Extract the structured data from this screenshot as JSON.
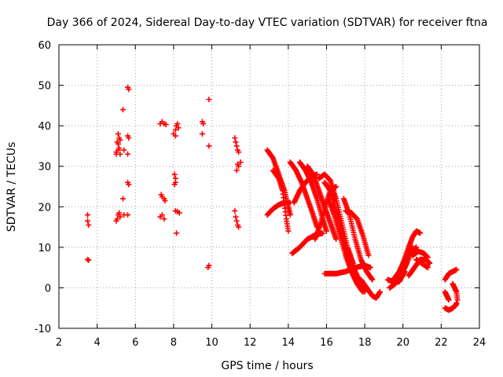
{
  "chart_data": {
    "type": "scatter",
    "title": "Day 366 of 2024, Sidereal Day-to-day VTEC variation (SDTVAR) for receiver ftna",
    "xlabel": "GPS time / hours",
    "ylabel": "SDTVAR / TECUs",
    "xlim": [
      2,
      24
    ],
    "ylim": [
      -10,
      60
    ],
    "xticks": [
      "2",
      "4",
      "6",
      "8",
      "10",
      "12",
      "14",
      "16",
      "18",
      "20",
      "22",
      "24"
    ],
    "yticks": [
      "-10",
      "0",
      "10",
      "20",
      "30",
      "40",
      "50",
      "60"
    ],
    "grid": true,
    "marker": "+",
    "marker_color": "#ff0000",
    "series": [
      {
        "name": "isolated",
        "points": [
          [
            3.5,
            18
          ],
          [
            3.5,
            16.5
          ],
          [
            3.55,
            15.5
          ],
          [
            3.5,
            7
          ],
          [
            3.55,
            6.8
          ],
          [
            5.05,
            17
          ],
          [
            5.1,
            18
          ],
          [
            5.15,
            18.5
          ],
          [
            5.2,
            17.5
          ],
          [
            5.0,
            16.5
          ],
          [
            5.0,
            33
          ],
          [
            5.1,
            34
          ],
          [
            5.1,
            35.5
          ],
          [
            5.15,
            37
          ],
          [
            5.1,
            38
          ],
          [
            5.2,
            36.5
          ],
          [
            5.0,
            33.5
          ],
          [
            5.2,
            33
          ],
          [
            5.15,
            34.5
          ],
          [
            5.05,
            36
          ],
          [
            5.35,
            44
          ],
          [
            5.4,
            34
          ],
          [
            5.35,
            22
          ],
          [
            5.4,
            18
          ],
          [
            5.6,
            49.5
          ],
          [
            5.65,
            49
          ],
          [
            5.6,
            37.5
          ],
          [
            5.65,
            37
          ],
          [
            5.6,
            33
          ],
          [
            5.6,
            26
          ],
          [
            5.65,
            25.5
          ],
          [
            5.6,
            18
          ],
          [
            7.3,
            40.5
          ],
          [
            7.4,
            41
          ],
          [
            7.5,
            40.5
          ],
          [
            7.6,
            40.3
          ],
          [
            7.35,
            23
          ],
          [
            7.4,
            22.5
          ],
          [
            7.5,
            22
          ],
          [
            7.55,
            21.5
          ],
          [
            7.3,
            17.5
          ],
          [
            7.4,
            18
          ],
          [
            7.5,
            17
          ],
          [
            8.0,
            38
          ],
          [
            8.1,
            39
          ],
          [
            8.15,
            40
          ],
          [
            8.2,
            40.5
          ],
          [
            8.25,
            39.5
          ],
          [
            8.1,
            37.5
          ],
          [
            8.05,
            28
          ],
          [
            8.1,
            27
          ],
          [
            8.1,
            26
          ],
          [
            8.05,
            25.5
          ],
          [
            8.1,
            19
          ],
          [
            8.2,
            18.8
          ],
          [
            8.3,
            18.5
          ],
          [
            8.15,
            13.5
          ],
          [
            9.5,
            41
          ],
          [
            9.55,
            40.5
          ],
          [
            9.5,
            38
          ],
          [
            9.85,
            46.5
          ],
          [
            9.85,
            35
          ],
          [
            9.85,
            5.5
          ],
          [
            9.8,
            5
          ],
          [
            11.2,
            37
          ],
          [
            11.25,
            36
          ],
          [
            11.3,
            35
          ],
          [
            11.35,
            34
          ],
          [
            11.4,
            33.5
          ],
          [
            11.3,
            29
          ],
          [
            11.4,
            30
          ],
          [
            11.5,
            31
          ],
          [
            11.35,
            30.5
          ],
          [
            11.2,
            19
          ],
          [
            11.25,
            17.5
          ],
          [
            11.3,
            16.5
          ],
          [
            11.35,
            15.5
          ],
          [
            11.4,
            15
          ]
        ]
      },
      {
        "name": "passes",
        "tracks": [
          [
            [
              12.9,
              34
            ],
            [
              13.2,
              32
            ],
            [
              13.5,
              28
            ],
            [
              13.8,
              24
            ],
            [
              14.0,
              20
            ],
            [
              14.1,
              18
            ]
          ],
          [
            [
              12.9,
              18
            ],
            [
              13.2,
              19.5
            ],
            [
              13.5,
              20.5
            ],
            [
              13.8,
              21
            ],
            [
              14.1,
              21
            ]
          ],
          [
            [
              13.2,
              29
            ],
            [
              13.5,
              27
            ],
            [
              13.7,
              24
            ],
            [
              13.9,
              17
            ],
            [
              14.0,
              14
            ]
          ],
          [
            [
              14.1,
              31
            ],
            [
              14.4,
              29
            ],
            [
              14.7,
              26
            ],
            [
              15.0,
              22
            ],
            [
              15.3,
              18
            ],
            [
              15.5,
              15
            ]
          ],
          [
            [
              14.3,
              21
            ],
            [
              14.6,
              24
            ],
            [
              14.9,
              26
            ],
            [
              15.2,
              27.5
            ],
            [
              15.5,
              28
            ]
          ],
          [
            [
              14.6,
              31
            ],
            [
              14.9,
              29
            ],
            [
              15.2,
              26
            ],
            [
              15.5,
              22
            ],
            [
              15.8,
              17
            ],
            [
              16.0,
              14
            ]
          ],
          [
            [
              14.2,
              8.5
            ],
            [
              14.6,
              10
            ],
            [
              15.0,
              12
            ],
            [
              15.4,
              13
            ],
            [
              15.8,
              13.5
            ]
          ],
          [
            [
              15.0,
              30
            ],
            [
              15.3,
              28
            ],
            [
              15.6,
              24
            ],
            [
              15.9,
              20
            ],
            [
              16.2,
              16
            ],
            [
              16.5,
              12
            ]
          ],
          [
            [
              15.4,
              12
            ],
            [
              15.7,
              16
            ],
            [
              16.0,
              21
            ],
            [
              16.2,
              24
            ],
            [
              16.5,
              25
            ]
          ],
          [
            [
              15.6,
              27
            ],
            [
              15.9,
              28
            ],
            [
              16.2,
              26.5
            ],
            [
              16.5,
              22
            ],
            [
              16.8,
              16
            ],
            [
              17.1,
              10
            ],
            [
              17.4,
              6
            ]
          ],
          [
            [
              15.9,
              26
            ],
            [
              16.2,
              24
            ],
            [
              16.5,
              19
            ],
            [
              16.8,
              13
            ],
            [
              17.1,
              9
            ],
            [
              17.4,
              5
            ],
            [
              17.7,
              2
            ],
            [
              18.0,
              -1
            ]
          ],
          [
            [
              16.1,
              22
            ],
            [
              16.4,
              18
            ],
            [
              16.7,
              13
            ],
            [
              17.0,
              8
            ],
            [
              17.3,
              4
            ],
            [
              17.6,
              1
            ],
            [
              17.9,
              -1
            ]
          ],
          [
            [
              16.9,
              22
            ],
            [
              17.2,
              18
            ],
            [
              17.5,
              12
            ],
            [
              17.8,
              7
            ],
            [
              18.1,
              4
            ],
            [
              18.4,
              2
            ]
          ],
          [
            [
              15.9,
              3.5
            ],
            [
              16.5,
              3.5
            ],
            [
              17.0,
              4
            ],
            [
              17.5,
              5
            ],
            [
              18.0,
              5.5
            ],
            [
              18.3,
              5
            ]
          ],
          [
            [
              17.0,
              19
            ],
            [
              17.3,
              18.5
            ],
            [
              17.6,
              17
            ],
            [
              17.9,
              13
            ],
            [
              18.2,
              8
            ]
          ],
          [
            [
              17.8,
              2
            ],
            [
              18.1,
              0
            ],
            [
              18.4,
              -2
            ],
            [
              18.6,
              -2.5
            ],
            [
              18.8,
              -1
            ]
          ],
          [
            [
              19.2,
              2
            ],
            [
              19.5,
              1.5
            ],
            [
              19.8,
              1.5
            ],
            [
              20.1,
              4
            ]
          ],
          [
            [
              19.3,
              0
            ],
            [
              19.6,
              1
            ],
            [
              19.9,
              3
            ],
            [
              20.2,
              6
            ],
            [
              20.5,
              10
            ]
          ],
          [
            [
              19.5,
              2
            ],
            [
              19.8,
              4
            ],
            [
              20.1,
              7
            ],
            [
              20.4,
              9
            ],
            [
              20.7,
              10
            ]
          ],
          [
            [
              20.0,
              6
            ],
            [
              20.3,
              10
            ],
            [
              20.5,
              12.5
            ],
            [
              20.7,
              14
            ],
            [
              20.9,
              13.5
            ]
          ],
          [
            [
              20.3,
              3
            ],
            [
              20.6,
              5
            ],
            [
              20.9,
              7
            ],
            [
              21.2,
              7
            ],
            [
              21.4,
              6
            ]
          ],
          [
            [
              20.5,
              8
            ],
            [
              20.8,
              9
            ],
            [
              21.1,
              8.5
            ],
            [
              21.3,
              7.5
            ]
          ],
          [
            [
              20.7,
              7
            ],
            [
              21.0,
              6
            ],
            [
              21.3,
              5
            ]
          ],
          [
            [
              22.2,
              -1
            ],
            [
              22.3,
              -2
            ],
            [
              22.4,
              -3
            ]
          ],
          [
            [
              22.2,
              -5
            ],
            [
              22.4,
              -5.5
            ],
            [
              22.6,
              -5
            ],
            [
              22.8,
              -4
            ]
          ],
          [
            [
              22.6,
              1
            ],
            [
              22.7,
              0
            ],
            [
              22.8,
              -1
            ],
            [
              22.85,
              -3
            ],
            [
              22.75,
              -4.5
            ]
          ],
          [
            [
              22.2,
              2
            ],
            [
              22.4,
              3.5
            ],
            [
              22.6,
              4
            ],
            [
              22.8,
              4.5
            ]
          ]
        ]
      }
    ]
  }
}
